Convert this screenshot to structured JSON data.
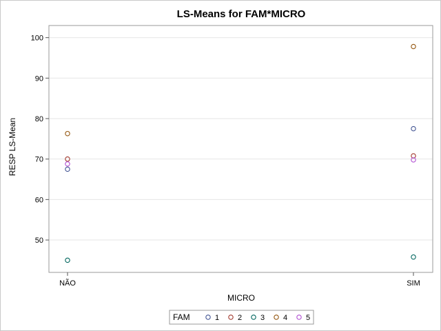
{
  "chart_data": {
    "type": "scatter",
    "title": "LS-Means for FAM*MICRO",
    "xlabel": "MICRO",
    "ylabel": "RESP LS-Mean",
    "categories": [
      "NÃO",
      "SIM"
    ],
    "ylim": [
      42,
      103
    ],
    "yticks": [
      50,
      60,
      70,
      80,
      90,
      100
    ],
    "grid": true,
    "legend": {
      "title": "FAM",
      "placement": "bottom"
    },
    "series": [
      {
        "name": "1",
        "color": "#445694",
        "values": [
          67.5,
          77.5
        ]
      },
      {
        "name": "2",
        "color": "#a23a2e",
        "values": [
          70.0,
          70.8
        ]
      },
      {
        "name": "3",
        "color": "#01665e",
        "values": [
          45.0,
          45.8
        ]
      },
      {
        "name": "4",
        "color": "#94560f",
        "values": [
          76.3,
          97.8
        ]
      },
      {
        "name": "5",
        "color": "#b14fd2",
        "values": [
          68.8,
          69.8
        ]
      }
    ]
  }
}
